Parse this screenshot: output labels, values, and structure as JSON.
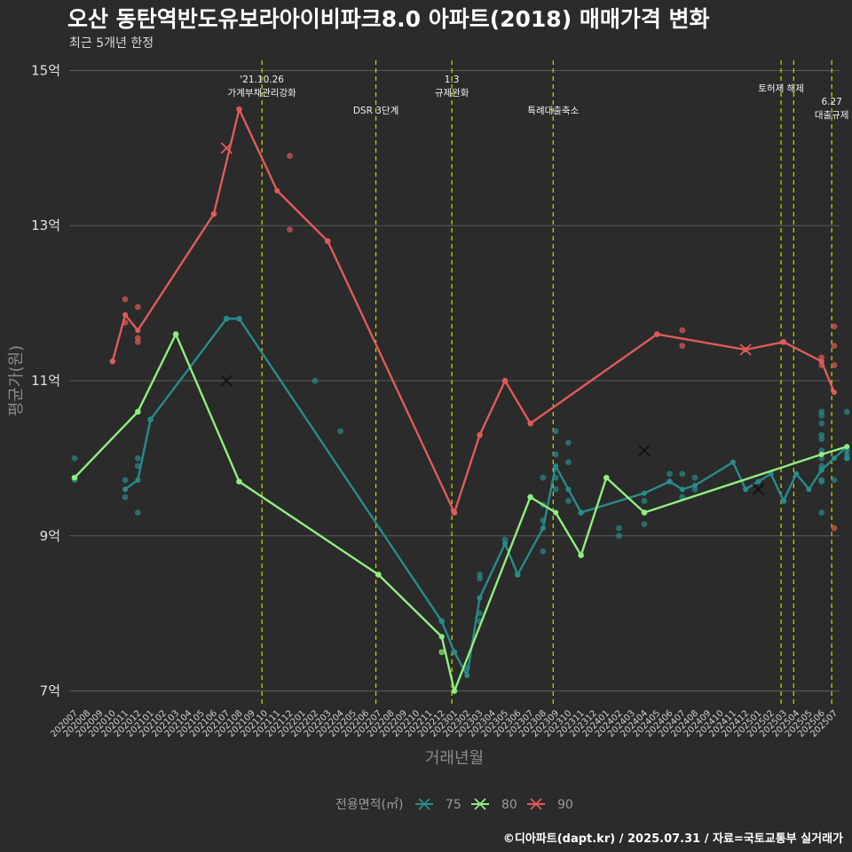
{
  "title": "오산 동탄역반도유보라아이비파크8.0 아파트(2018) 매매가격 변화",
  "subtitle": "최근 5개년 한정",
  "caption": "©디아파트(dapt.kr) / 2025.07.31 / 자료=국토교통부 실거래가",
  "colors": {
    "background": "#2b2b2b",
    "grid": "#5a5a5a",
    "vline": "#d4d400",
    "s75": "#2a8a8a",
    "s80": "#90ee80",
    "s90": "#e05a5a"
  },
  "chart_data": {
    "type": "line",
    "xlabel": "거래년월",
    "ylabel": "평균가(원)",
    "ylim": [
      6.8,
      15.2
    ],
    "y_ticks": [
      {
        "value": 7,
        "label": "7억"
      },
      {
        "value": 9,
        "label": "9억"
      },
      {
        "value": 11,
        "label": "11억"
      },
      {
        "value": 13,
        "label": "13억"
      },
      {
        "value": 15,
        "label": "15억"
      }
    ],
    "categories": [
      "202007",
      "202008",
      "202009",
      "202010",
      "202011",
      "202012",
      "202101",
      "202102",
      "202103",
      "202104",
      "202105",
      "202106",
      "202107",
      "202108",
      "202109",
      "202110",
      "202111",
      "202112",
      "202201",
      "202202",
      "202203",
      "202204",
      "202205",
      "202206",
      "202207",
      "202208",
      "202209",
      "202210",
      "202211",
      "202212",
      "202301",
      "202302",
      "202303",
      "202304",
      "202305",
      "202306",
      "202307",
      "202308",
      "202309",
      "202310",
      "202311",
      "202312",
      "202401",
      "202402",
      "202403",
      "202404",
      "202405",
      "202406",
      "202407",
      "202408",
      "202409",
      "202410",
      "202411",
      "202412",
      "202501",
      "202502",
      "202503",
      "202504",
      "202505",
      "202506",
      "202507"
    ],
    "legend_title": "전용면적(㎡)",
    "events": [
      {
        "x": 14.8,
        "label": "'21.10.26\n가계부채관리강화",
        "row": 1
      },
      {
        "x": 23.8,
        "label": "DSR 3단계",
        "row": 2
      },
      {
        "x": 29.8,
        "label": "1.3\n규제완화",
        "row": 1
      },
      {
        "x": 37.8,
        "label": "특례대출축소",
        "row": 2
      },
      {
        "x": 55.8,
        "label": "토허제 해제",
        "row": 0
      },
      {
        "x": 56.8,
        "label": "",
        "row": 0
      },
      {
        "x": 59.8,
        "label": "6.27\n대출규제",
        "row": 3
      }
    ],
    "series": [
      {
        "name": "75",
        "line": [
          [
            4,
            9.6
          ],
          [
            5,
            9.72
          ],
          [
            6,
            10.5
          ],
          [
            12,
            11.8
          ],
          [
            13,
            11.8
          ],
          [
            29,
            7.9
          ],
          [
            30,
            7.5
          ],
          [
            31,
            7.2
          ],
          [
            32,
            8.2
          ],
          [
            34,
            8.9
          ],
          [
            35,
            8.5
          ],
          [
            37,
            9.1
          ],
          [
            38,
            9.9
          ],
          [
            39,
            9.6
          ],
          [
            40,
            9.3
          ],
          [
            45,
            9.55
          ],
          [
            47,
            9.7
          ],
          [
            48,
            9.6
          ],
          [
            49,
            9.65
          ],
          [
            52,
            9.95
          ],
          [
            53,
            9.6
          ],
          [
            54,
            9.7
          ],
          [
            55,
            9.8
          ],
          [
            56,
            9.45
          ],
          [
            57,
            9.8
          ],
          [
            58,
            9.6
          ],
          [
            59,
            9.85
          ],
          [
            60,
            10.0
          ],
          [
            61,
            10.15
          ],
          [
            61,
            10.0
          ]
        ],
        "points": [
          [
            0,
            10.0
          ],
          [
            0,
            9.72
          ],
          [
            4,
            9.72
          ],
          [
            4,
            9.5
          ],
          [
            5,
            10.0
          ],
          [
            5,
            9.9
          ],
          [
            5,
            9.3
          ],
          [
            6,
            10.5
          ],
          [
            12,
            11.8
          ],
          [
            13,
            11.8
          ],
          [
            19,
            11.0
          ],
          [
            21,
            10.35
          ],
          [
            29,
            7.9
          ],
          [
            29,
            7.7
          ],
          [
            30,
            7.5
          ],
          [
            31,
            7.3
          ],
          [
            32,
            8.5
          ],
          [
            32,
            8.45
          ],
          [
            32,
            8.0
          ],
          [
            32,
            7.9
          ],
          [
            34,
            8.95
          ],
          [
            35,
            8.5
          ],
          [
            37,
            8.8
          ],
          [
            37,
            9.75
          ],
          [
            37,
            9.2
          ],
          [
            37,
            9.4
          ],
          [
            38,
            10.05
          ],
          [
            38,
            9.6
          ],
          [
            38,
            10.35
          ],
          [
            38,
            9.75
          ],
          [
            39,
            10.2
          ],
          [
            39,
            9.95
          ],
          [
            39,
            9.45
          ],
          [
            40,
            9.3
          ],
          [
            43,
            9.1
          ],
          [
            43,
            9.0
          ],
          [
            45,
            9.15
          ],
          [
            45,
            9.45
          ],
          [
            47,
            9.8
          ],
          [
            47,
            9.7
          ],
          [
            48,
            9.8
          ],
          [
            48,
            9.5
          ],
          [
            49,
            9.75
          ],
          [
            49,
            9.6
          ],
          [
            56,
            9.45
          ],
          [
            59,
            10.6
          ],
          [
            59,
            10.55
          ],
          [
            59,
            10.45
          ],
          [
            59,
            10.3
          ],
          [
            59,
            10.25
          ],
          [
            59,
            10.1
          ],
          [
            59,
            10.0
          ],
          [
            59,
            9.9
          ],
          [
            59,
            9.85
          ],
          [
            59,
            9.72
          ],
          [
            59,
            9.7
          ],
          [
            59,
            9.3
          ],
          [
            60,
            9.72
          ],
          [
            61,
            10.6
          ],
          [
            61,
            10.1
          ],
          [
            61,
            10.05
          ],
          [
            61,
            10.0
          ]
        ],
        "markers": [
          [
            12,
            11.0
          ],
          [
            45,
            10.1
          ],
          [
            54,
            9.6
          ]
        ]
      },
      {
        "name": "80",
        "line": [
          [
            0,
            9.75
          ],
          [
            5,
            10.6
          ],
          [
            8,
            11.6
          ],
          [
            13,
            9.7
          ],
          [
            24,
            8.5
          ],
          [
            29,
            7.7
          ],
          [
            30,
            7.0
          ],
          [
            36,
            9.5
          ],
          [
            38,
            9.3
          ],
          [
            40,
            8.75
          ],
          [
            42,
            9.75
          ],
          [
            45,
            9.3
          ],
          [
            59,
            10.05
          ],
          [
            61,
            10.15
          ]
        ],
        "points": [
          [
            0,
            9.75
          ],
          [
            5,
            10.6
          ],
          [
            8,
            11.6
          ],
          [
            13,
            9.7
          ],
          [
            24,
            8.5
          ],
          [
            29,
            7.5
          ],
          [
            30,
            7.0
          ],
          [
            36,
            9.5
          ],
          [
            40,
            8.75
          ],
          [
            42,
            9.75
          ],
          [
            45,
            9.3
          ]
        ],
        "markers": []
      },
      {
        "name": "90",
        "line": [
          [
            3,
            11.25
          ],
          [
            4,
            11.85
          ],
          [
            5,
            11.65
          ],
          [
            11,
            13.15
          ],
          [
            13,
            14.5
          ],
          [
            16,
            13.45
          ],
          [
            20,
            12.8
          ],
          [
            30,
            9.3
          ],
          [
            32,
            10.3
          ],
          [
            34,
            11.0
          ],
          [
            36,
            10.45
          ],
          [
            46,
            11.6
          ],
          [
            53,
            11.4
          ],
          [
            56,
            11.5
          ],
          [
            59,
            11.25
          ],
          [
            60,
            10.85
          ]
        ],
        "points": [
          [
            3,
            11.25
          ],
          [
            4,
            12.05
          ],
          [
            4,
            11.75
          ],
          [
            5,
            11.95
          ],
          [
            5,
            11.55
          ],
          [
            5,
            11.5
          ],
          [
            11,
            13.15
          ],
          [
            13,
            14.5
          ],
          [
            17,
            13.9
          ],
          [
            17,
            12.95
          ],
          [
            20,
            12.8
          ],
          [
            30,
            9.3
          ],
          [
            32,
            10.3
          ],
          [
            34,
            11.0
          ],
          [
            36,
            10.45
          ],
          [
            46,
            11.6
          ],
          [
            48,
            11.65
          ],
          [
            48,
            11.45
          ],
          [
            56,
            11.5
          ],
          [
            59,
            11.3
          ],
          [
            59,
            11.2
          ],
          [
            60,
            11.7
          ],
          [
            60,
            11.45
          ],
          [
            60,
            11.2
          ],
          [
            60,
            9.1
          ]
        ],
        "markers": [
          [
            12,
            14.0
          ],
          [
            53,
            11.4
          ]
        ]
      }
    ]
  }
}
